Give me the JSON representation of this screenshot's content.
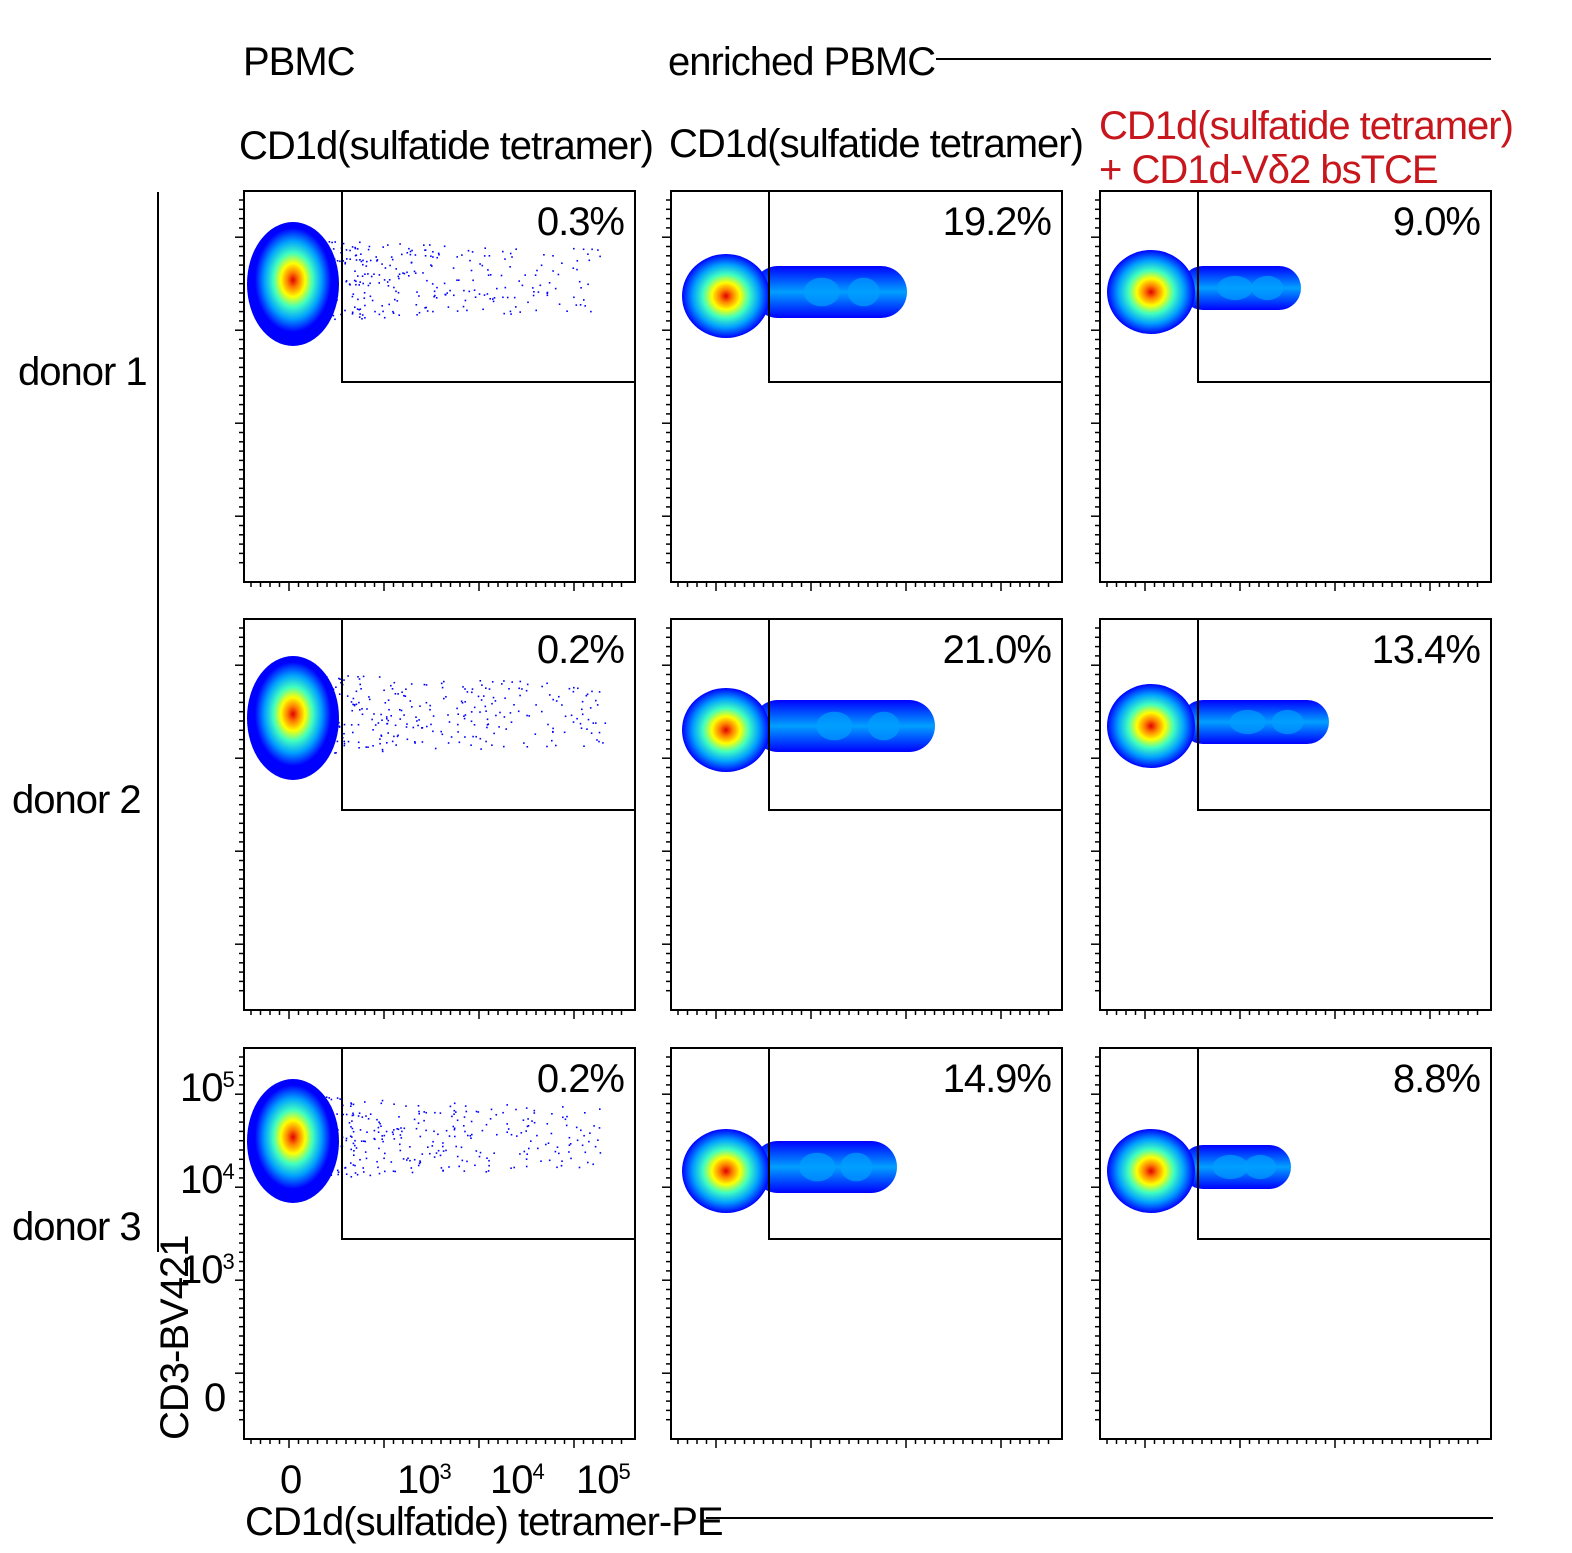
{
  "headers": {
    "col1_group": "PBMC",
    "col23_group": "enriched PBMC",
    "col1_title": "CD1d(sulfatide tetramer)",
    "col2_title": "CD1d(sulfatide tetramer)",
    "col3_title_line1": "CD1d(sulfatide tetramer)",
    "col3_title_line2": "+ CD1d-Vδ2 bsTCE"
  },
  "rows": [
    "donor 1",
    "donor 2",
    "donor 3"
  ],
  "axes": {
    "ylabel": "CD3-BV421",
    "xlabel": "CD1d(sulfatide) tetramer-PE",
    "y_ticks": [
      {
        "base": "10",
        "exp": "5"
      },
      {
        "base": "10",
        "exp": "4"
      },
      {
        "base": "10",
        "exp": "3"
      },
      {
        "base": "0",
        "exp": ""
      }
    ],
    "x_ticks": [
      {
        "base": "0",
        "exp": ""
      },
      {
        "base": "10",
        "exp": "3"
      },
      {
        "base": "10",
        "exp": "4"
      },
      {
        "base": "10",
        "exp": "5"
      }
    ]
  },
  "colors": {
    "title_highlight": "#c8161d",
    "density_scale": [
      "#0000ff",
      "#00a0ff",
      "#40ffc0",
      "#ffff00",
      "#ff8000",
      "#e00000"
    ]
  },
  "chart_data": {
    "type": "scatter",
    "subtype": "flow-cytometry density plots (3 donors × 3 conditions)",
    "x_axis": "CD1d(sulfatide) tetramer-PE",
    "y_axis": "CD3-BV421",
    "x_scale": "biexponential",
    "y_scale": "biexponential",
    "columns": [
      "PBMC — CD1d(sulfatide tetramer)",
      "enriched PBMC — CD1d(sulfatide tetramer)",
      "enriched PBMC — CD1d(sulfatide tetramer) + CD1d-Vδ2 bsTCE"
    ],
    "gate_percentages": [
      [
        "0.3%",
        "19.2%",
        "9.0%"
      ],
      [
        "0.2%",
        "21.0%",
        "13.4%"
      ],
      [
        "0.2%",
        "14.9%",
        "8.8%"
      ]
    ]
  }
}
